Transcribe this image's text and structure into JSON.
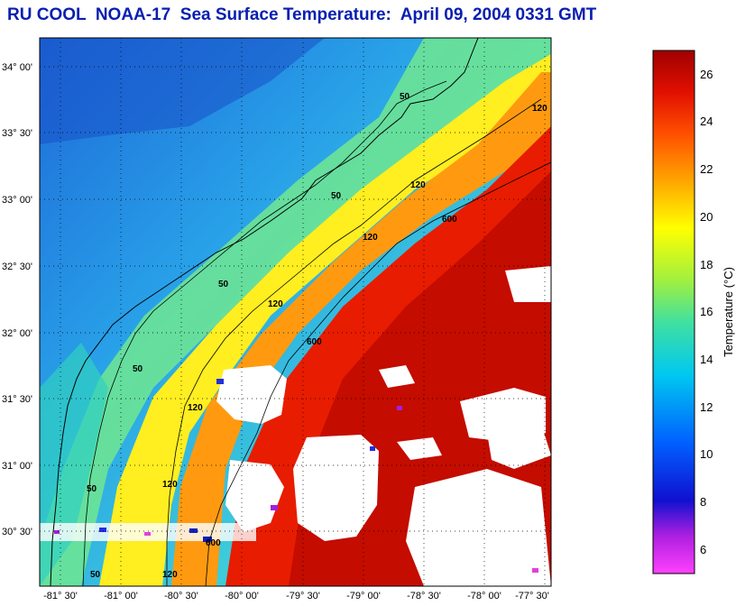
{
  "title": "RU COOL  NOAA-17  Sea Surface Temperature:  April 09, 2004 0331 GMT",
  "latitude_ticks": [
    "34° 00'",
    "33° 30'",
    "33° 00'",
    "32° 30'",
    "32° 00'",
    "31° 30'",
    "31° 00'",
    "30° 30'"
  ],
  "longitude_ticks": [
    "-81° 30'",
    "-81° 00'",
    "-80° 30'",
    "-80° 00'",
    "-79° 30'",
    "-79° 00'",
    "-78° 30'",
    "-78° 00'",
    "-77° 30'"
  ],
  "contour_labels": [
    "50",
    "120",
    "50",
    "120",
    "600",
    "50",
    "120",
    "600",
    "120",
    "120",
    "50",
    "50",
    "600",
    "120",
    "50",
    "120"
  ],
  "colorbar": {
    "title": "Temperature (°C)",
    "ticks": [
      "26",
      "24",
      "22",
      "20",
      "18",
      "16",
      "14",
      "12",
      "10",
      "8",
      "6"
    ],
    "min": 5,
    "max": 27,
    "colors": [
      "#ff40ff",
      "#b020e0",
      "#1010d0",
      "#0060ff",
      "#00c0e0",
      "#40e0a0",
      "#a0f040",
      "#ffff00",
      "#ffb000",
      "#ff5000",
      "#e01000",
      "#a00000"
    ]
  }
}
